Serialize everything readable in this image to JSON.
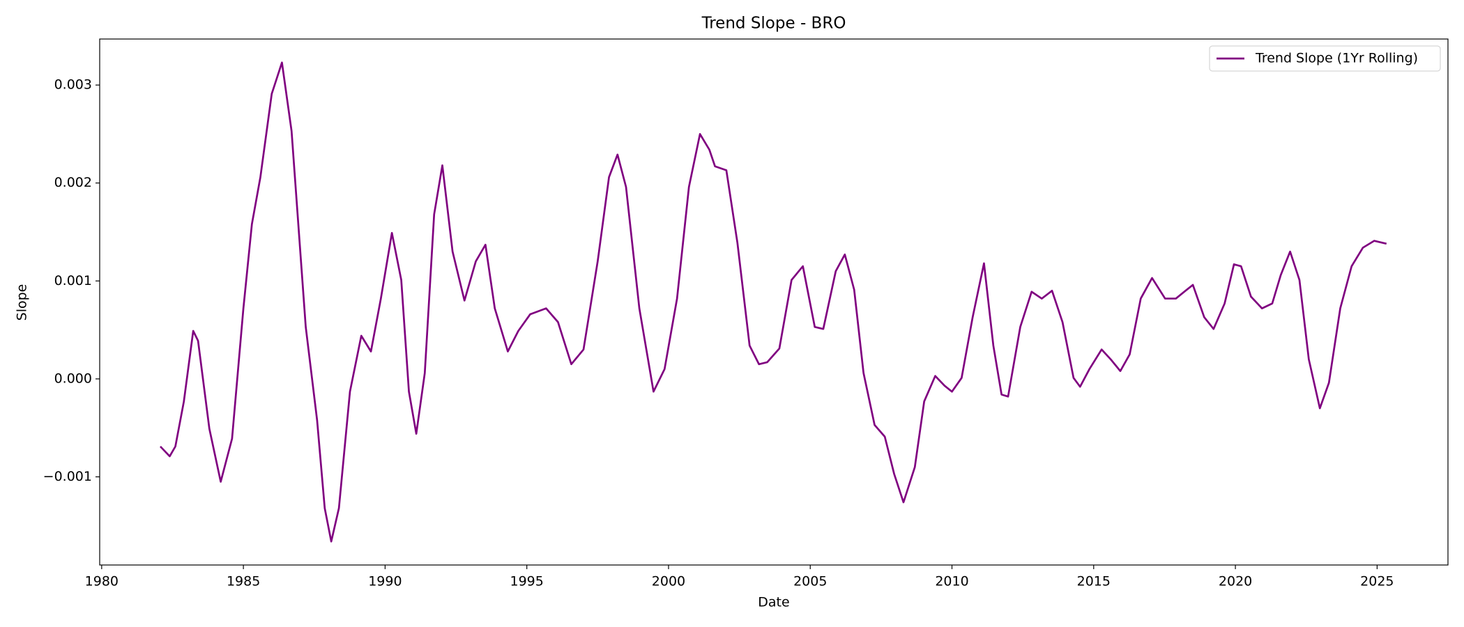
{
  "chart_data": {
    "type": "line",
    "title": "Trend Slope - BRO",
    "xlabel": "Date",
    "ylabel": "Slope",
    "x": [
      1982.07,
      1982.4,
      1982.6,
      1982.9,
      1983.23,
      1983.4,
      1983.8,
      1984.2,
      1984.6,
      1985.0,
      1985.3,
      1985.6,
      1986.0,
      1986.36,
      1986.7,
      1987.2,
      1987.6,
      1987.87,
      1988.1,
      1988.37,
      1988.76,
      1989.16,
      1989.5,
      1989.85,
      1990.24,
      1990.57,
      1990.84,
      1991.1,
      1991.4,
      1991.73,
      1992.02,
      1992.38,
      1992.8,
      1993.2,
      1993.54,
      1993.87,
      1994.33,
      1994.7,
      1995.12,
      1995.68,
      1996.1,
      1996.57,
      1997.0,
      1997.5,
      1997.9,
      1998.2,
      1998.5,
      1998.97,
      1999.47,
      1999.86,
      2000.3,
      2000.72,
      2001.11,
      2001.44,
      2001.64,
      2002.04,
      2002.43,
      2002.86,
      2003.19,
      2003.48,
      2003.91,
      2004.34,
      2004.74,
      2005.16,
      2005.46,
      2005.9,
      2006.22,
      2006.55,
      2006.88,
      2007.27,
      2007.63,
      2007.96,
      2008.29,
      2008.69,
      2009.02,
      2009.41,
      2009.74,
      2010.0,
      2010.34,
      2010.73,
      2011.13,
      2011.46,
      2011.75,
      2011.98,
      2012.41,
      2012.81,
      2013.17,
      2013.53,
      2013.9,
      2014.29,
      2014.52,
      2014.85,
      2015.28,
      2015.6,
      2015.94,
      2016.27,
      2016.66,
      2017.06,
      2017.52,
      2017.9,
      2018.24,
      2018.5,
      2018.9,
      2019.23,
      2019.62,
      2019.95,
      2020.2,
      2020.55,
      2020.94,
      2021.3,
      2021.6,
      2021.93,
      2022.26,
      2022.59,
      2022.98,
      2023.3,
      2023.7,
      2024.1,
      2024.5,
      2024.9,
      2025.33
    ],
    "series": [
      {
        "name": "Trend Slope (1Yr Rolling)",
        "color": "#800080",
        "values": [
          -0.00069,
          -0.00079,
          -0.00069,
          -0.00023,
          0.00049,
          0.00039,
          -0.00051,
          -0.00105,
          -0.00061,
          0.00072,
          0.00158,
          0.00206,
          0.00291,
          0.00323,
          0.00253,
          0.00053,
          -0.00042,
          -0.00132,
          -0.00166,
          -0.00132,
          -0.00013,
          0.00044,
          0.00028,
          0.00082,
          0.00149,
          0.00101,
          -0.00013,
          -0.00056,
          6e-05,
          0.00168,
          0.00218,
          0.0013,
          0.0008,
          0.0012,
          0.00137,
          0.00072,
          0.00028,
          0.00049,
          0.00066,
          0.00072,
          0.00058,
          0.00015,
          0.0003,
          0.0012,
          0.00206,
          0.00229,
          0.00196,
          0.00072,
          -0.00013,
          0.0001,
          0.00082,
          0.00196,
          0.0025,
          0.00234,
          0.00217,
          0.00213,
          0.00139,
          0.00034,
          0.00015,
          0.00017,
          0.00031,
          0.00101,
          0.00115,
          0.00053,
          0.00051,
          0.0011,
          0.00127,
          0.00091,
          6e-05,
          -0.00047,
          -0.00059,
          -0.00097,
          -0.00126,
          -0.0009,
          -0.00023,
          3e-05,
          -7e-05,
          -0.00013,
          1e-05,
          0.00063,
          0.00118,
          0.00034,
          -0.00016,
          -0.00018,
          0.00053,
          0.00089,
          0.00082,
          0.0009,
          0.00058,
          1e-05,
          -8e-05,
          0.0001,
          0.0003,
          0.0002,
          8e-05,
          0.00025,
          0.00082,
          0.00103,
          0.00082,
          0.00082,
          0.0009,
          0.00096,
          0.00063,
          0.00051,
          0.00077,
          0.00117,
          0.00115,
          0.00084,
          0.00072,
          0.00077,
          0.00106,
          0.0013,
          0.00101,
          0.0002,
          -0.0003,
          -4e-05,
          0.00072,
          0.00115,
          0.00134,
          0.00141,
          0.00138
        ]
      }
    ],
    "xlim": [
      1979.93,
      2027.5
    ],
    "xticks": [
      1980,
      1985,
      1990,
      1995,
      2000,
      2005,
      2010,
      2015,
      2020,
      2025
    ],
    "ylim": [
      -0.0019,
      0.00347
    ],
    "yticks": [
      {
        "value": -0.001,
        "label": "−0.001"
      },
      {
        "value": 0,
        "label": "0.000"
      },
      0.001,
      0.002,
      0.003
    ],
    "legend": "upper right"
  }
}
